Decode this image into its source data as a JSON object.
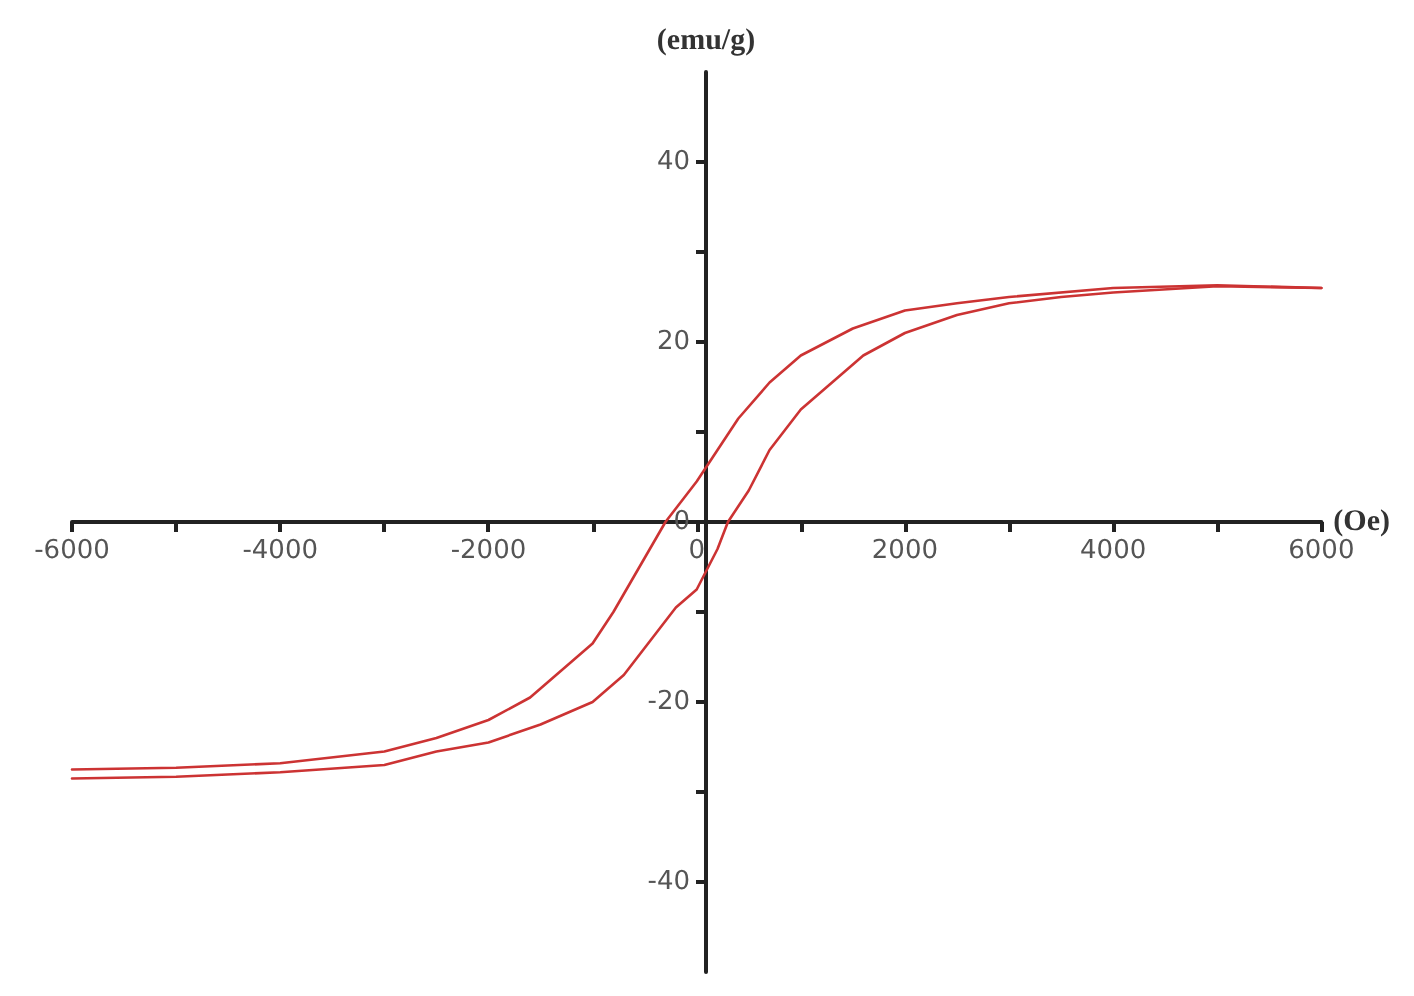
{
  "chart_data": {
    "type": "line",
    "xlabel": "(Oe)",
    "ylabel": "(emu/g)",
    "xlim": [
      -6000,
      6000
    ],
    "ylim": [
      -50,
      50
    ],
    "xticks": [
      -6000,
      {
        "value": -5000,
        "label": null
      },
      -4000,
      {
        "value": -3000,
        "label": null
      },
      -2000,
      {
        "value": -1000,
        "label": null
      },
      0,
      {
        "value": 1000,
        "label": null
      },
      2000,
      {
        "value": 3000,
        "label": null
      },
      4000,
      {
        "value": 5000,
        "label": null
      },
      6000
    ],
    "yticks": [
      -40,
      {
        "value": -30,
        "label": null
      },
      -20,
      {
        "value": -10,
        "label": null
      },
      0,
      {
        "value": 10,
        "label": null
      },
      20,
      {
        "value": 30,
        "label": null
      },
      40
    ],
    "marker": "none",
    "line_style": "solid",
    "series": [
      {
        "color": "#cc3333",
        "x": [
          6000,
          5000,
          4000,
          3000,
          2500,
          2000,
          1500,
          1000,
          700,
          400,
          200,
          0,
          -200,
          -300,
          -500,
          -800,
          -1000,
          -1300,
          -1600,
          -2000,
          -2500,
          -3000,
          -4000,
          -5000,
          -6000
        ],
        "values": [
          26,
          26.3,
          26,
          25,
          24.3,
          23.5,
          21.5,
          18.5,
          15.5,
          11.5,
          8,
          4.5,
          1.5,
          0,
          -4,
          -10,
          -13.5,
          -16.5,
          -19.5,
          -22,
          -24,
          -25.5,
          -26.8,
          -27.3,
          -27.5
        ]
      },
      {
        "color": "#cc3333",
        "x": [
          -6000,
          -5000,
          -4000,
          -3000,
          -2500,
          -2000,
          -1500,
          -1000,
          -700,
          -400,
          -200,
          0,
          200,
          300,
          500,
          700,
          1000,
          1300,
          1600,
          2000,
          2500,
          3000,
          3500,
          4000,
          5000,
          6000
        ],
        "values": [
          -28.5,
          -28.3,
          -27.8,
          -27,
          -25.5,
          -24.5,
          -22.5,
          -20,
          -17,
          -12.5,
          -9.5,
          -7.5,
          -3,
          0,
          3.5,
          8,
          12.5,
          15.5,
          18.5,
          21,
          23,
          24.3,
          25,
          25.5,
          26.2,
          26
        ]
      }
    ]
  }
}
